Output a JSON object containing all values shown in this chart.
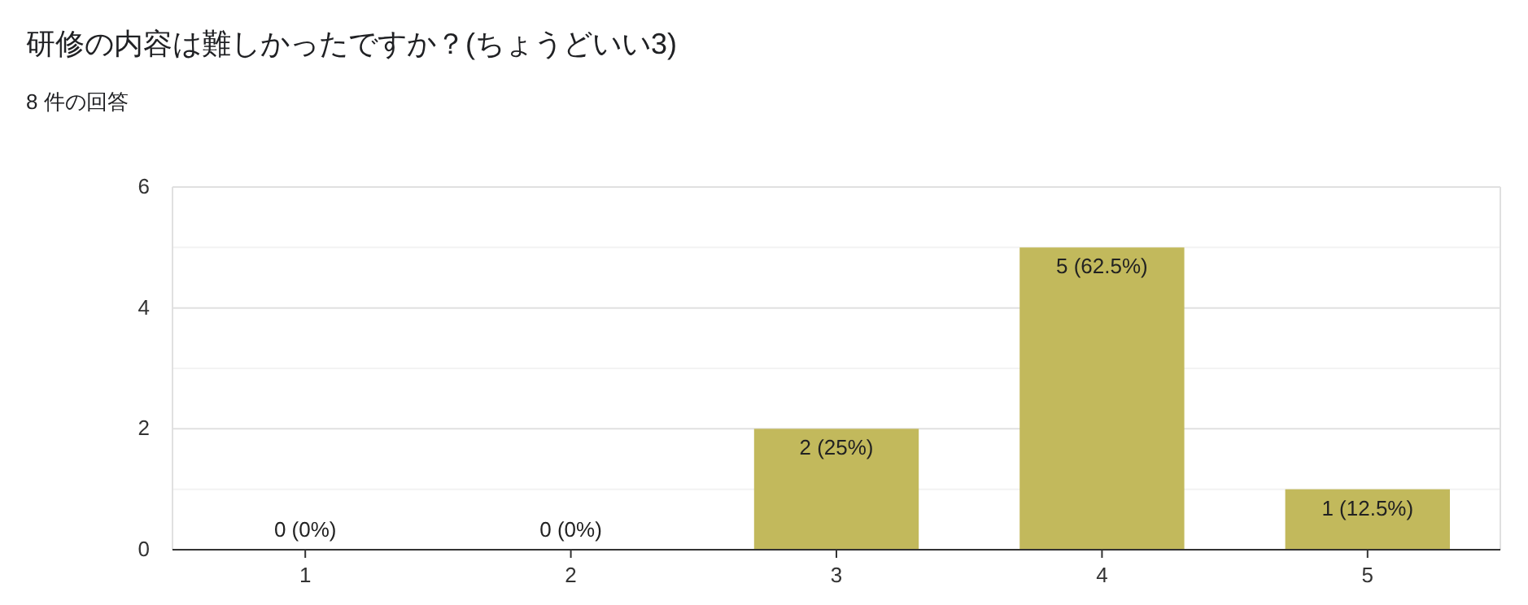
{
  "chart_data": {
    "type": "bar",
    "title": "研修の内容は難しかったですか？(ちょうどいい3)",
    "subtitle": "8 件の回答",
    "categories": [
      "1",
      "2",
      "3",
      "4",
      "5"
    ],
    "values": [
      0,
      0,
      2,
      5,
      1
    ],
    "color": "#c2b95c",
    "value_labels": [
      "0 (0%)",
      "0 (0%)",
      "2 (25%)",
      "5 (62.5%)",
      "1 (12.5%)"
    ],
    "ylim": [
      0,
      6
    ],
    "yticks": [
      0,
      {
        "value": 1,
        "label": null
      },
      2,
      {
        "value": 3,
        "label": null
      },
      4,
      {
        "value": 5,
        "label": null
      },
      6
    ],
    "grid": true
  }
}
